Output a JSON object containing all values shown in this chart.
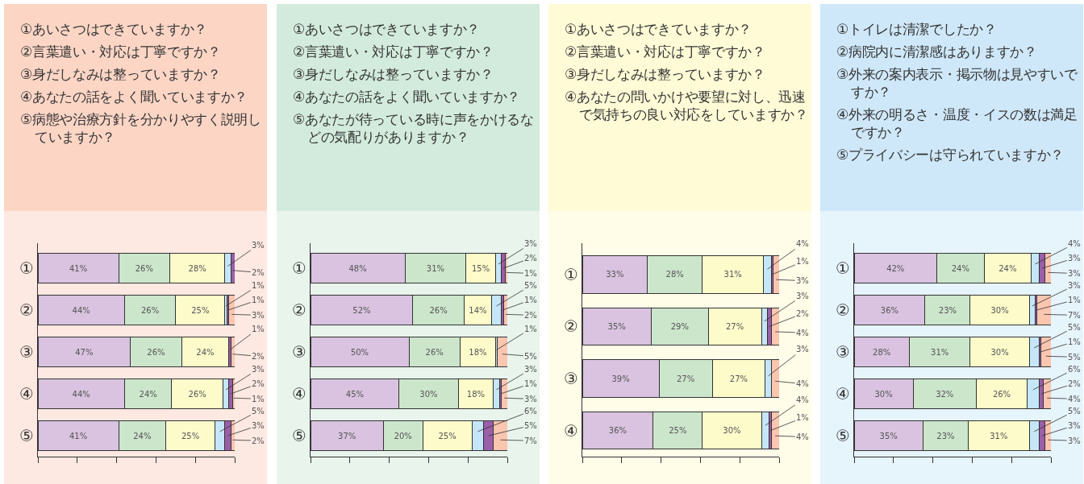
{
  "chart_data": [
    {
      "type": "bar",
      "orientation": "horizontal",
      "stacked": true,
      "tick_labels": "y",
      "grid": false,
      "annotations": [
        "①あいさつはできていますか？",
        "②言葉遣い・対応は丁寧ですか？",
        "③身だしなみは整っていますか？",
        "④あなたの話をよく聞いていますか？",
        "⑤病態や治療方針を分かりやすく説明していますか？"
      ],
      "categories": [
        "①",
        "②",
        "③",
        "④",
        "⑤"
      ],
      "xlim": [
        0,
        100
      ],
      "xticks": [
        {
          "value": 0,
          "label": null
        },
        {
          "value": 20,
          "label": null
        },
        {
          "value": 40,
          "label": null
        },
        {
          "value": 60,
          "label": null
        },
        {
          "value": 80,
          "label": null
        },
        {
          "value": 100,
          "label": null
        }
      ],
      "series": [
        {
          "color": "#d9c3e0",
          "values": [
            41,
            44,
            47,
            44,
            41
          ],
          "value_labels": [
            "41%",
            "44%",
            "47%",
            "44%",
            "41%"
          ]
        },
        {
          "color": "#cce6cc",
          "values": [
            26,
            26,
            26,
            24,
            24
          ],
          "value_labels": [
            "26%",
            "26%",
            "26%",
            "24%",
            "24%"
          ]
        },
        {
          "color": "#fefbcb",
          "values": [
            28,
            25,
            24,
            26,
            25
          ],
          "value_labels": [
            "28%",
            "25%",
            "24%",
            "26%",
            "25%"
          ]
        },
        {
          "color": "#c5e6f8",
          "values": [
            3,
            1,
            null,
            3,
            5
          ],
          "value_labels": [
            "3%",
            "1%",
            null,
            "3%",
            "5%"
          ]
        },
        {
          "color": "#9b5ea8",
          "values": [
            2,
            1,
            1,
            2,
            3
          ],
          "value_labels": [
            "2%",
            "1%",
            "1%",
            "2%",
            "3%"
          ]
        },
        {
          "color": "#fbc6b0",
          "values": [
            null,
            3,
            2,
            1,
            2
          ],
          "value_labels": [
            null,
            "3%",
            "2%",
            "1%",
            "2%"
          ]
        }
      ]
    },
    {
      "type": "bar",
      "orientation": "horizontal",
      "stacked": true,
      "tick_labels": "y",
      "grid": false,
      "annotations": [
        "①あいさつはできていますか？",
        "②言葉遣い・対応は丁寧ですか？",
        "③身だしなみは整っていますか？",
        "④あなたの話をよく聞いていますか？",
        "⑤あなたが待っている時に声をかけるなどの気配りがありますか？"
      ],
      "categories": [
        "①",
        "②",
        "③",
        "④",
        "⑤"
      ],
      "xlim": [
        0,
        100
      ],
      "xticks": [
        {
          "value": 0,
          "label": null
        },
        {
          "value": 20,
          "label": null
        },
        {
          "value": 40,
          "label": null
        },
        {
          "value": 60,
          "label": null
        },
        {
          "value": 80,
          "label": null
        },
        {
          "value": 100,
          "label": null
        }
      ],
      "series": [
        {
          "color": "#d9c3e0",
          "values": [
            48,
            52,
            50,
            45,
            37
          ],
          "value_labels": [
            "48%",
            "52%",
            "50%",
            "45%",
            "37%"
          ]
        },
        {
          "color": "#cce6cc",
          "values": [
            31,
            26,
            26,
            30,
            20
          ],
          "value_labels": [
            "31%",
            "26%",
            "26%",
            "30%",
            "20%"
          ]
        },
        {
          "color": "#fefbcb",
          "values": [
            15,
            14,
            18,
            18,
            25
          ],
          "value_labels": [
            "15%",
            "14%",
            "18%",
            "18%",
            "25%"
          ]
        },
        {
          "color": "#c5e6f8",
          "values": [
            3,
            5,
            1,
            3,
            6
          ],
          "value_labels": [
            "3%",
            "5%",
            "1%",
            "3%",
            "6%"
          ]
        },
        {
          "color": "#9b5ea8",
          "values": [
            2,
            1,
            null,
            1,
            5
          ],
          "value_labels": [
            "2%",
            "1%",
            null,
            "1%",
            "5%"
          ]
        },
        {
          "color": "#fbc6b0",
          "values": [
            1,
            2,
            5,
            3,
            7
          ],
          "value_labels": [
            "1%",
            "2%",
            "5%",
            "3%",
            "7%"
          ]
        }
      ]
    },
    {
      "type": "bar",
      "orientation": "horizontal",
      "stacked": true,
      "tick_labels": "y",
      "grid": false,
      "annotations": [
        "①あいさつはできていますか？",
        "②言葉遣い・対応は丁寧ですか？",
        "③身だしなみは整っていますか？",
        "④あなたの問いかけや要望に対し、迅速で気持ちの良い対応をしていますか？"
      ],
      "categories": [
        "①",
        "②",
        "③",
        "④"
      ],
      "xlim": [
        0,
        100
      ],
      "xticks": [
        {
          "value": 0,
          "label": null
        },
        {
          "value": 20,
          "label": null
        },
        {
          "value": 40,
          "label": null
        },
        {
          "value": 60,
          "label": null
        },
        {
          "value": 80,
          "label": null
        },
        {
          "value": 100,
          "label": null
        }
      ],
      "series": [
        {
          "color": "#d9c3e0",
          "values": [
            33,
            35,
            39,
            36
          ],
          "value_labels": [
            "33%",
            "35%",
            "39%",
            "36%"
          ]
        },
        {
          "color": "#cce6cc",
          "values": [
            28,
            29,
            27,
            25
          ],
          "value_labels": [
            "28%",
            "29%",
            "27%",
            "25%"
          ]
        },
        {
          "color": "#fefbcb",
          "values": [
            31,
            27,
            27,
            30
          ],
          "value_labels": [
            "31%",
            "27%",
            "27%",
            "30%"
          ]
        },
        {
          "color": "#c5e6f8",
          "values": [
            4,
            3,
            3,
            4
          ],
          "value_labels": [
            "4%",
            "3%",
            "3%",
            "4%"
          ]
        },
        {
          "color": "#9b5ea8",
          "values": [
            1,
            2,
            null,
            1
          ],
          "value_labels": [
            "1%",
            "2%",
            null,
            "1%"
          ]
        },
        {
          "color": "#fbc6b0",
          "values": [
            3,
            4,
            4,
            4
          ],
          "value_labels": [
            "3%",
            "4%",
            "4%",
            "4%"
          ]
        }
      ]
    },
    {
      "type": "bar",
      "orientation": "horizontal",
      "stacked": true,
      "tick_labels": "y",
      "grid": false,
      "annotations": [
        "①トイレは清潔でしたか？",
        "②病院内に清潔感はありますか？",
        "③外来の案内表示・掲示物は見やすいですか？",
        "④外来の明るさ・温度・イスの数は満足ですか？",
        "⑤プライバシーは守られていますか？"
      ],
      "categories": [
        "①",
        "②",
        "③",
        "④",
        "⑤"
      ],
      "xlim": [
        0,
        100
      ],
      "xticks": [
        {
          "value": 0,
          "label": null
        },
        {
          "value": 20,
          "label": null
        },
        {
          "value": 40,
          "label": null
        },
        {
          "value": 60,
          "label": null
        },
        {
          "value": 80,
          "label": null
        },
        {
          "value": 100,
          "label": null
        }
      ],
      "series": [
        {
          "color": "#d9c3e0",
          "values": [
            42,
            36,
            28,
            30,
            35
          ],
          "value_labels": [
            "42%",
            "36%",
            "28%",
            "30%",
            "35%"
          ]
        },
        {
          "color": "#cce6cc",
          "values": [
            24,
            23,
            31,
            32,
            23
          ],
          "value_labels": [
            "24%",
            "23%",
            "31%",
            "32%",
            "23%"
          ]
        },
        {
          "color": "#fefbcb",
          "values": [
            24,
            30,
            30,
            26,
            31
          ],
          "value_labels": [
            "24%",
            "30%",
            "30%",
            "26%",
            "31%"
          ]
        },
        {
          "color": "#c5e6f8",
          "values": [
            4,
            3,
            5,
            6,
            5
          ],
          "value_labels": [
            "4%",
            "3%",
            "5%",
            "6%",
            "5%"
          ]
        },
        {
          "color": "#9b5ea8",
          "values": [
            3,
            1,
            1,
            2,
            3
          ],
          "value_labels": [
            "3%",
            "1%",
            "1%",
            "2%",
            "3%"
          ]
        },
        {
          "color": "#fbc6b0",
          "values": [
            3,
            7,
            5,
            4,
            3
          ],
          "value_labels": [
            "3%",
            "7%",
            "5%",
            "4%",
            "3%"
          ]
        }
      ]
    }
  ]
}
